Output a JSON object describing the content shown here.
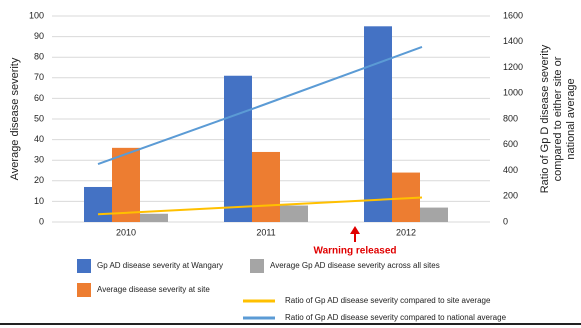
{
  "chart_data": {
    "type": "bar",
    "categories": [
      "2010",
      "2011",
      "2012"
    ],
    "y_label": "Average disease severity",
    "y2_label": [
      "Ratio of Gp D disease severity",
      "compared to either site or",
      "national average"
    ],
    "ylim": [
      0,
      100
    ],
    "yticks": [
      0,
      10,
      20,
      30,
      40,
      50,
      60,
      70,
      80,
      90,
      100
    ],
    "y2lim": [
      0,
      1600
    ],
    "y2ticks": [
      0,
      200,
      400,
      600,
      800,
      1000,
      1200,
      1400,
      1600
    ],
    "grid": true,
    "series": [
      {
        "name": "Gp AD disease severity at Wangary",
        "type": "bar",
        "color": "#4472c4",
        "values": [
          17,
          71,
          95
        ]
      },
      {
        "name": "Average disease severity at site",
        "type": "bar",
        "color": "#ed7d31",
        "values": [
          36,
          34,
          24
        ]
      },
      {
        "name": "Average Gp AD disease severity across all sites",
        "type": "bar",
        "color": "#a5a5a5",
        "values": [
          4,
          8,
          7
        ]
      },
      {
        "name": "Ratio of Gp AD disease severity compared to site average",
        "type": "line",
        "axis": "y2",
        "color": "#ffc000",
        "values": [
          60,
          125,
          190
        ]
      },
      {
        "name": "Ratio of Gp AD disease severity compared to national average",
        "type": "line",
        "axis": "y2",
        "color": "#5b9bd5",
        "values": [
          450,
          900,
          1360
        ]
      }
    ],
    "annotation": "Warning released"
  }
}
